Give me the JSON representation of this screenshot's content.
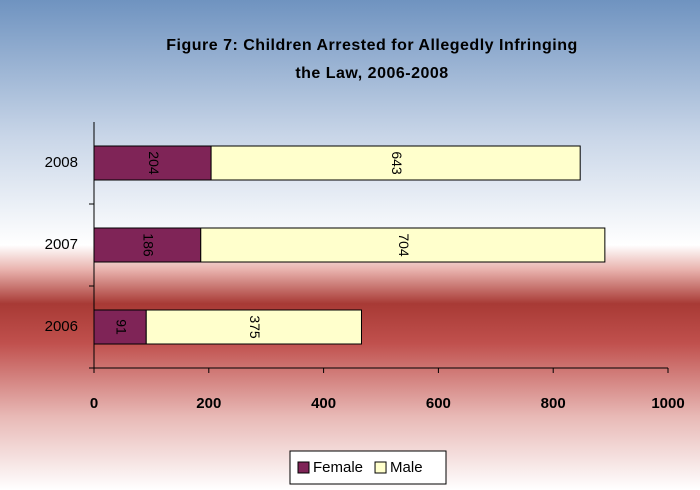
{
  "chart_data": {
    "type": "bar",
    "orientation": "horizontal",
    "stacked": true,
    "title": [
      "Figure 7: Children Arrested for Allegedly Infringing",
      "the Law, 2006-2008"
    ],
    "categories": [
      "2008",
      "2007",
      "2006"
    ],
    "series": [
      {
        "name": "Female",
        "color": "#7f2457",
        "label_color": "#ffffff",
        "values": [
          204,
          186,
          91
        ]
      },
      {
        "name": "Male",
        "color": "#ffffcc",
        "label_color": "#000000",
        "values": [
          643,
          704,
          375
        ]
      }
    ],
    "xlim": [
      0,
      1000
    ],
    "xticks": [
      0,
      200,
      400,
      600,
      800,
      1000
    ],
    "legend": "bottom"
  }
}
